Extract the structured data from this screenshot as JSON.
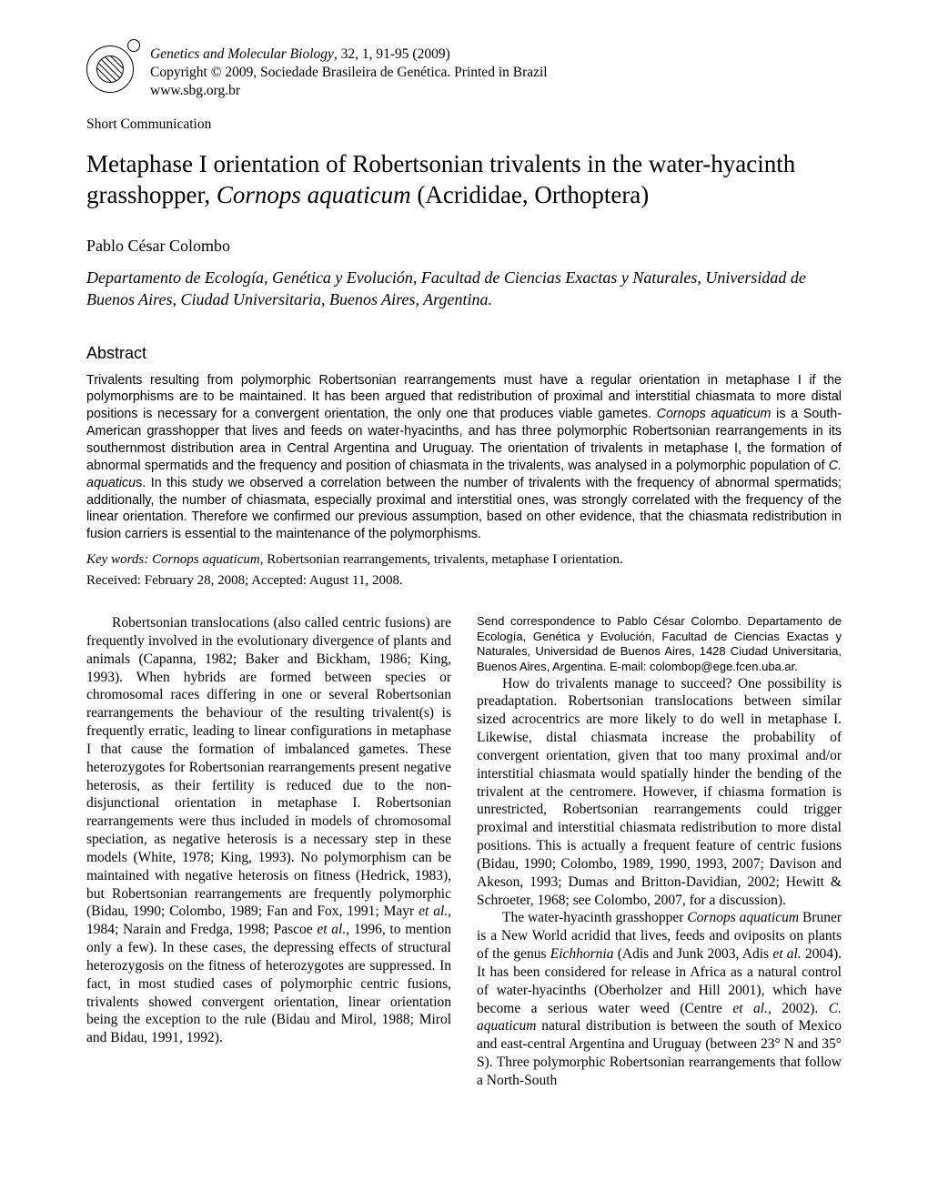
{
  "journal": {
    "name": "Genetics and Molecular Biology",
    "issue": ", 32, 1, 91-95 (2009)",
    "copyright": "Copyright © 2009, Sociedade Brasileira de Genética. Printed in Brazil",
    "url": "www.sbg.org.br"
  },
  "section_label": "Short Communication",
  "title": {
    "pre": "Metaphase I orientation of Robertsonian trivalents in the water-hyacinth grasshopper, ",
    "species": "Cornops aquaticum",
    "post": " (Acrididae, Orthoptera)"
  },
  "author": "Pablo César Colombo",
  "affiliation": "Departamento de Ecología, Genética y Evolución, Facultad de Ciencias Exactas y Naturales, Universidad de Buenos Aires, Ciudad Universitaria, Buenos Aires, Argentina.",
  "abstract": {
    "heading": "Abstract",
    "p1a": "Trivalents resulting from polymorphic Robertsonian rearrangements must have a regular orientation in metaphase I if the polymorphisms are to be maintained. It has been argued that redistribution of proximal and interstitial chiasmata to more distal positions is necessary for a convergent orientation, the only one that produces viable gametes. ",
    "p1b_it": "Cornops aquaticum",
    "p1c": " is a South-American grasshopper that lives and feeds on water-hyacinths, and has three polymorphic Robertsonian rearrangements in its southernmost distribution area in Central Argentina and Uruguay. The orientation of trivalents in metaphase I, the formation of abnormal spermatids and the frequency and position of chiasmata in the trivalents, was analysed in a polymorphic population of ",
    "p1d_it": "C. aquaticu",
    "p1e": "s. In this study we observed a correlation between the number of trivalents with the frequency of abnormal spermatids; additionally, the number of chiasmata, especially proximal and interstitial ones, was strongly correlated with the frequency of the linear orientation. Therefore we confirmed our previous assumption, based on other evidence, that the chiasmata redistribution in fusion carriers is essential to the maintenance of the polymorphisms."
  },
  "keywords": {
    "label": "Key words: ",
    "species": "Cornops aquaticum",
    "rest": ", Robertsonian rearrangements, trivalents, metaphase I orientation."
  },
  "dates": "Received: February 28, 2008; Accepted: August 11, 2008.",
  "body": {
    "p1a": "Robertsonian translocations (also called centric fusions) are frequently involved in the evolutionary divergence of plants and animals (Capanna, 1982; Baker and Bickham, 1986; King, 1993). When hybrids are formed between species or chromosomal races differing in one or several Robertsonian rearrangements the behaviour of the resulting trivalent(s) is frequently erratic, leading to linear configurations in metaphase I that cause the formation of imbalanced gametes. These heterozygotes for Robertsonian rearrangements present negative heterosis, as their fertility is reduced due to the non-disjunctional orientation in metaphase I. Robertsonian rearrangements were thus included in models of chromosomal speciation, as negative heterosis is a necessary step in these models (White, 1978; King, 1993). No polymorphism can be maintained with negative heterosis on fitness (Hedrick, 1983), but Robertsonian rearrangements are frequently polymorphic (Bidau, 1990; Colombo, 1989; Fan and Fox, 1991; Mayr ",
    "p1b_it": "et al.",
    "p1c": ", 1984; Narain and Fredga, 1998; Pascoe ",
    "p1d_it": "et al.",
    "p1e": ", 1996, to mention only a few). In these cases, the depressing effects of structural heterozygosis on the fitness of heterozygotes are suppressed. In fact, in most studied cases of polymor",
    "p1e_cont": "phic centric fusions, trivalents showed convergent orientation, linear orientation being the exception to the rule (Bidau and Mirol, 1988; Mirol and Bidau, 1991, 1992).",
    "p2": "How do trivalents manage to succeed? One possibility is preadaptation. Robertsonian translocations between similar sized acrocentrics are more likely to do well in metaphase I. Likewise, distal chiasmata increase the probability of convergent orientation, given that too many proximal and/or interstitial chiasmata would spatially hinder the bending of the trivalent at the centromere. However, if chiasma formation is unrestricted, Robertsonian rearrangements could trigger proximal and interstitial chiasmata redistribution to more distal positions. This is actually a frequent feature of centric fusions (Bidau, 1990; Colombo, 1989, 1990, 1993, 2007; Davison and Akeson, 1993; Dumas and Britton-Davidian, 2002; Hewitt & Schroeter, 1968; see Colombo, 2007, for a discussion).",
    "p3a": "The water-hyacinth grasshopper ",
    "p3b_it": "Cornops aquaticum",
    "p3c": " Bruner is a New World acridid that lives, feeds and oviposits on plants of the genus ",
    "p3d_it": "Eichhornia",
    "p3e": " (Adis and Junk 2003, Adis ",
    "p3f_it": "et al.",
    "p3g": " 2004). It has been considered for release in Africa as a natural control of water-hyacinths (Oberholzer and Hill 2001), which have become a serious water weed (Centre ",
    "p3h_it": "et al.",
    "p3i": ", 2002). ",
    "p3j_it": "C. aquaticum",
    "p3k": " natural distribution is between the south of Mexico and east-central Argentina and Uruguay (between 23° N and 35° S). Three polymorphic Robertsonian rearrangements that follow a North-South"
  },
  "correspondence": "Send correspondence to Pablo César Colombo. Departamento de Ecología, Genética y Evolución, Facultad de Ciencias Exactas y Naturales, Universidad de Buenos Aires, 1428 Ciudad Universitaria, Buenos Aires, Argentina. E-mail: colombop@ege.fcen.uba.ar."
}
